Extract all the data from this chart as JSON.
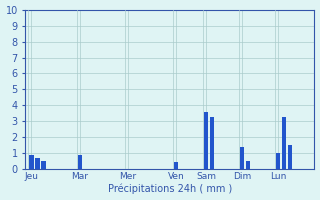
{
  "xlabel": "Précipitations 24h ( mm )",
  "ylim": [
    0,
    10
  ],
  "yticks": [
    0,
    1,
    2,
    3,
    4,
    5,
    6,
    7,
    8,
    9,
    10
  ],
  "background_color": "#dff4f4",
  "grid_color": "#aacccc",
  "axis_color": "#3355aa",
  "bar_color": "#2255cc",
  "bar_width": 0.7,
  "day_labels": [
    "Jeu",
    "Mar",
    "Mer",
    "Ven",
    "Sam",
    "Dim",
    "Lun"
  ],
  "day_positions": [
    0,
    8,
    16,
    24,
    29,
    35,
    41
  ],
  "bars": [
    [
      0,
      0.9
    ],
    [
      1,
      0.7
    ],
    [
      2,
      0.5
    ],
    [
      8,
      0.9
    ],
    [
      24,
      0.45
    ],
    [
      29,
      3.6
    ],
    [
      30,
      3.3
    ],
    [
      35,
      1.4
    ],
    [
      36,
      0.5
    ],
    [
      41,
      1.0
    ],
    [
      42,
      3.3
    ],
    [
      43,
      1.5
    ]
  ],
  "xlim": [
    -1,
    47
  ],
  "figsize": [
    3.2,
    2.0
  ],
  "dpi": 100,
  "xlabel_fontsize": 7,
  "ytick_fontsize": 7,
  "xtick_fontsize": 6.5
}
